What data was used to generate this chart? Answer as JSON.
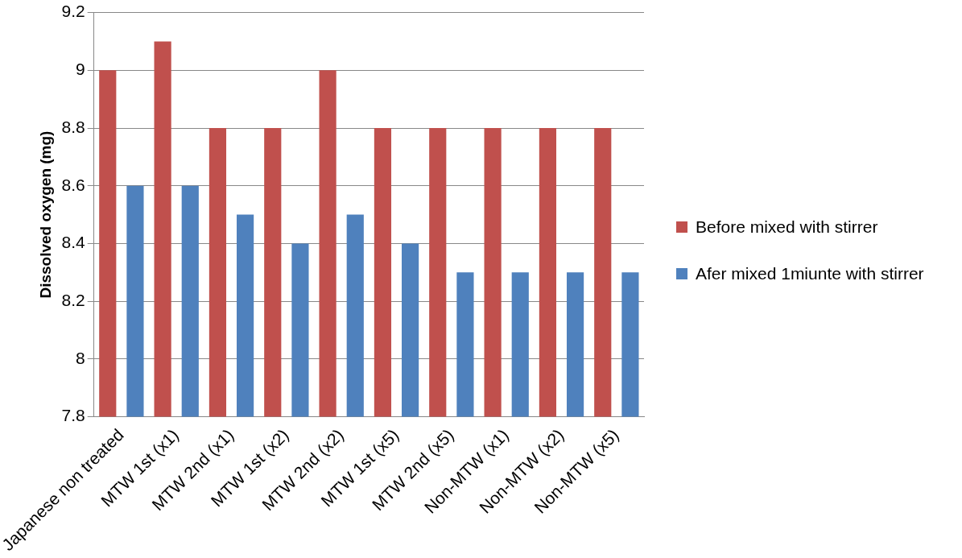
{
  "chart_data": {
    "type": "bar",
    "ylabel": "Dissolved oxygen (mg)",
    "categories": [
      "Japanese non treated",
      "MTW 1st (x1)",
      "MTW 2nd (x1)",
      "MTW 1st (x2)",
      "MTW 2nd (x2)",
      "MTW 1st (x5)",
      "MTW 2nd (x5)",
      "Non-MTW (x1)",
      "Non-MTW (x2)",
      "Non-MTW (x5)"
    ],
    "series": [
      {
        "name": "Before mixed with stirrer",
        "color": "#c0504d",
        "values": [
          9.0,
          9.1,
          8.8,
          8.8,
          9.0,
          8.8,
          8.8,
          8.8,
          8.8,
          8.8
        ]
      },
      {
        "name": "Afer mixed 1miunte with stirrer",
        "color": "#4f81bd",
        "values": [
          8.6,
          8.6,
          8.5,
          8.4,
          8.5,
          8.4,
          8.3,
          8.3,
          8.3,
          8.3
        ]
      }
    ],
    "ylim": [
      7.8,
      9.2
    ],
    "yticks": [
      7.8,
      8,
      8.2,
      8.4,
      8.6,
      8.8,
      9,
      9.2
    ],
    "grid": "y",
    "legend": "right"
  }
}
